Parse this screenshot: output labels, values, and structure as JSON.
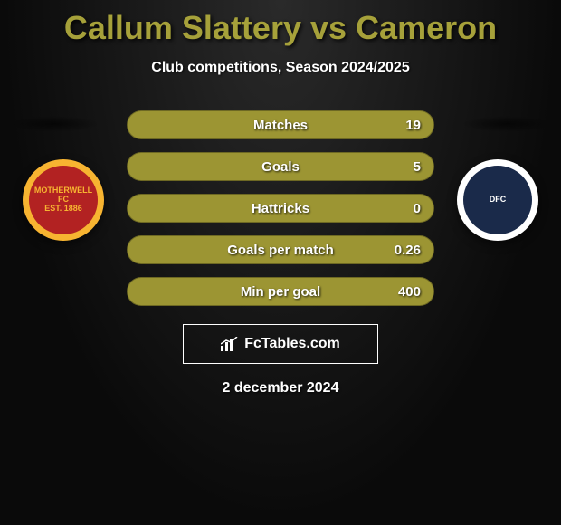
{
  "title": {
    "left": "Callum Slattery",
    "vs": "vs",
    "right": "Cameron",
    "color": "#a6a13a"
  },
  "subtitle": "Club competitions, Season 2024/2025",
  "bars": [
    {
      "label": "Matches",
      "value": "19",
      "bg": "#9c9533"
    },
    {
      "label": "Goals",
      "value": "5",
      "bg": "#9c9533"
    },
    {
      "label": "Hattricks",
      "value": "0",
      "bg": "#9c9533"
    },
    {
      "label": "Goals per match",
      "value": "0.26",
      "bg": "#9c9533"
    },
    {
      "label": "Min per goal",
      "value": "400",
      "bg": "#9c9533"
    }
  ],
  "crests": {
    "left": {
      "bg": "#f7b431",
      "inner": "#b22222",
      "text": "MOTHERWELL FC\nEST. 1886",
      "text_color": "#f7b431"
    },
    "right": {
      "bg": "#ffffff",
      "inner": "#1a2a4a",
      "text": "DFC",
      "text_color": "#ffffff"
    }
  },
  "brand": {
    "text": "FcTables.com",
    "icon": "chart-icon"
  },
  "date": "2 december 2024",
  "background": "#0a0a0a"
}
